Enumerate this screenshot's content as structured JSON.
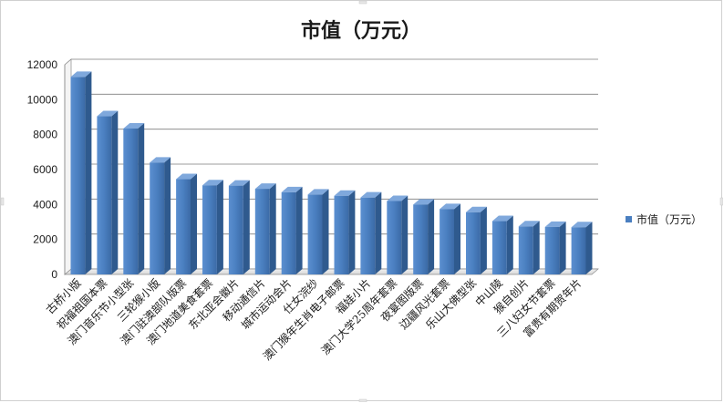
{
  "chart_data": {
    "type": "bar",
    "title": "市值（万元）",
    "xlabel": "",
    "ylabel": "",
    "ylim": [
      0,
      12000
    ],
    "yticks": [
      0,
      2000,
      4000,
      6000,
      8000,
      10000,
      12000
    ],
    "grid": true,
    "legend_position": "right",
    "categories": [
      "古桥小版",
      "祝福祖国本票",
      "澳门音乐节小型张",
      "三轮猴小版",
      "澳门驻澳部队版票",
      "澳门地道美食套票",
      "东北亚会徽片",
      "移动通信片",
      "城市运动会片",
      "仕女浣纱",
      "澳门猴年生肖电子邮票",
      "福娃小片",
      "澳门大学25周年套票",
      "夜宴图版票",
      "边疆风光套票",
      "乐山大佛型张",
      "中山陵",
      "猴自创片",
      "三八妇女节套票",
      "富贵有期贺年片"
    ],
    "series": [
      {
        "name": "市值（万元）",
        "color": "#4a7fc0",
        "values": [
          11300,
          9050,
          8350,
          6400,
          5450,
          5100,
          5080,
          4900,
          4700,
          4570,
          4500,
          4400,
          4200,
          4000,
          3740,
          3560,
          3050,
          2750,
          2720,
          2700
        ]
      }
    ]
  }
}
